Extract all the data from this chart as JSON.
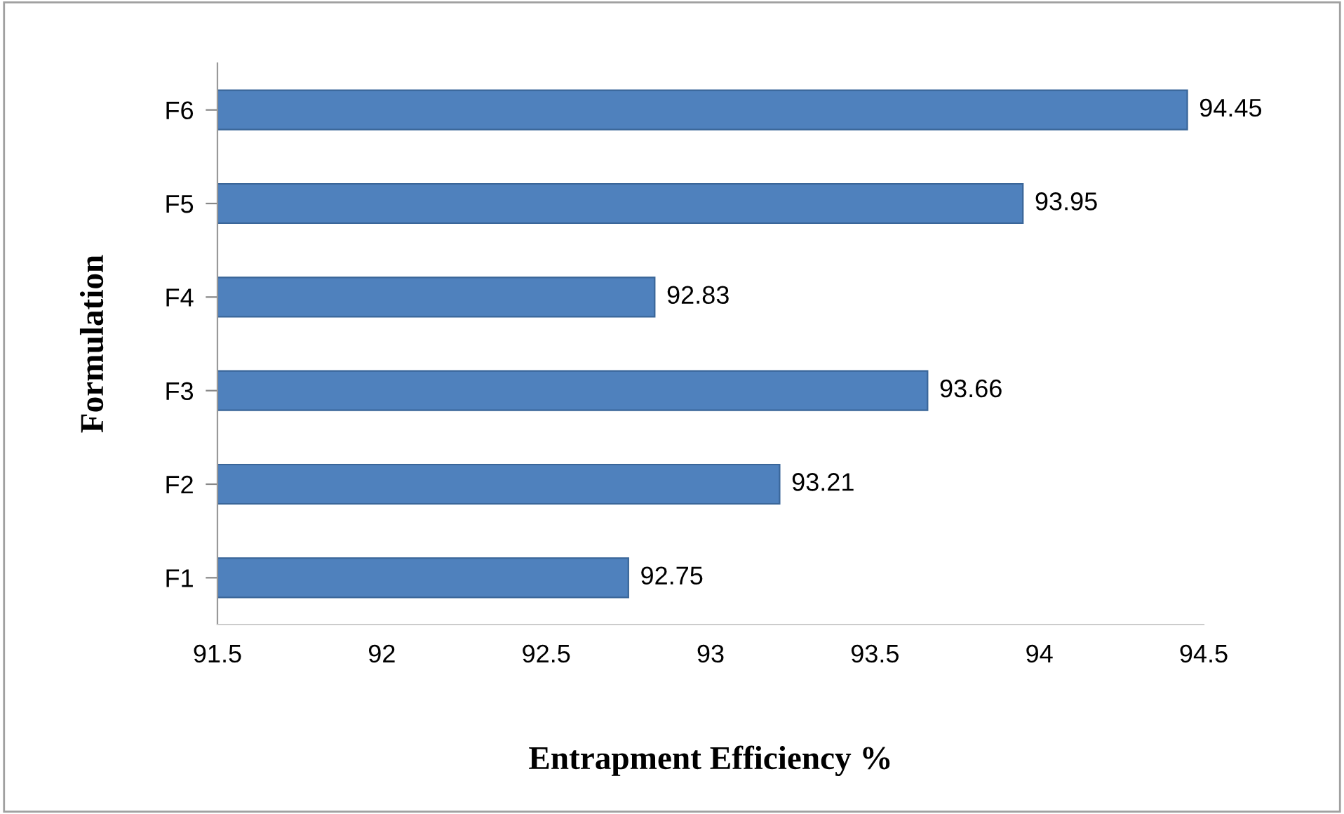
{
  "chart_data": {
    "type": "bar",
    "orientation": "horizontal",
    "xlabel": "Entrapment Efficiency %",
    "ylabel": "Formulation",
    "categories": [
      "F6",
      "F5",
      "F4",
      "F3",
      "F2",
      "F1"
    ],
    "values": [
      94.45,
      93.95,
      92.83,
      93.66,
      93.21,
      92.75
    ],
    "color": "#4f81bd",
    "xlim": [
      91.5,
      94.5
    ],
    "xticks": [
      91.5,
      92,
      92.5,
      93,
      93.5,
      94,
      94.5
    ],
    "data_labels": true,
    "grid": false,
    "legend": false
  }
}
